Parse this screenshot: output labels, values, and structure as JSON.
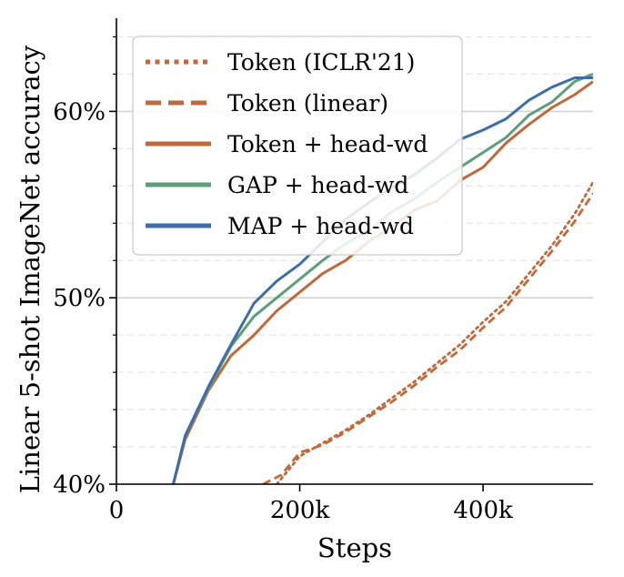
{
  "chart_data": {
    "type": "line",
    "xlabel": "Steps",
    "ylabel": "Linear 5-shot ImageNet accuracy",
    "xlim": [
      0,
      520000
    ],
    "ylim": [
      40,
      65
    ],
    "x_ticks": [
      {
        "value": 0,
        "label": "0"
      },
      {
        "value": 200000,
        "label": "200k"
      },
      {
        "value": 400000,
        "label": "400k"
      }
    ],
    "y_ticks": [
      {
        "value": 40,
        "label": "40%"
      },
      {
        "value": 50,
        "label": "50%"
      },
      {
        "value": 60,
        "label": "60%"
      }
    ],
    "y_minor_gridlines": [
      42,
      44,
      46,
      48,
      52,
      54,
      56,
      58,
      62,
      64
    ],
    "grid": true,
    "legend_position": "top-left",
    "series": [
      {
        "name": "Token (ICLR'21)",
        "color": "#c0693a",
        "style": "dotted",
        "points": [
          [
            175000,
            40
          ],
          [
            200000,
            41.5
          ],
          [
            225000,
            42.2
          ],
          [
            250000,
            42.9
          ],
          [
            275000,
            43.7
          ],
          [
            300000,
            44.6
          ],
          [
            325000,
            45.5
          ],
          [
            350000,
            46.5
          ],
          [
            375000,
            47.5
          ],
          [
            400000,
            48.7
          ],
          [
            425000,
            49.8
          ],
          [
            450000,
            51.3
          ],
          [
            475000,
            52.8
          ],
          [
            500000,
            54.5
          ],
          [
            520000,
            56.2
          ]
        ]
      },
      {
        "name": "Token (linear)",
        "color": "#c0693a",
        "style": "dashed",
        "points": [
          [
            160000,
            40
          ],
          [
            180000,
            40.5
          ],
          [
            200000,
            41.7
          ],
          [
            225000,
            42.1
          ],
          [
            250000,
            42.8
          ],
          [
            275000,
            43.6
          ],
          [
            300000,
            44.4
          ],
          [
            325000,
            45.3
          ],
          [
            350000,
            46.3
          ],
          [
            375000,
            47.2
          ],
          [
            400000,
            48.4
          ],
          [
            425000,
            49.5
          ],
          [
            450000,
            51.0
          ],
          [
            475000,
            52.5
          ],
          [
            500000,
            54.1
          ],
          [
            520000,
            55.6
          ]
        ]
      },
      {
        "name": "Token + head-wd",
        "color": "#c0693a",
        "style": "solid",
        "points": [
          [
            62000,
            40
          ],
          [
            75000,
            42.4
          ],
          [
            100000,
            45
          ],
          [
            125000,
            46.9
          ],
          [
            150000,
            48
          ],
          [
            175000,
            49.3
          ],
          [
            200000,
            50.3
          ],
          [
            225000,
            51.3
          ],
          [
            250000,
            52
          ],
          [
            275000,
            53
          ],
          [
            300000,
            53.8
          ],
          [
            325000,
            54.7
          ],
          [
            350000,
            55.2
          ],
          [
            375000,
            56.3
          ],
          [
            400000,
            57
          ],
          [
            425000,
            58.3
          ],
          [
            450000,
            59.3
          ],
          [
            475000,
            60.2
          ],
          [
            500000,
            60.9
          ],
          [
            520000,
            61.6
          ]
        ]
      },
      {
        "name": "GAP + head-wd",
        "color": "#5e9e7a",
        "style": "solid",
        "points": [
          [
            62000,
            40
          ],
          [
            75000,
            42.6
          ],
          [
            100000,
            45.1
          ],
          [
            125000,
            47.4
          ],
          [
            150000,
            49
          ],
          [
            175000,
            50
          ],
          [
            200000,
            51
          ],
          [
            225000,
            52
          ],
          [
            250000,
            52.9
          ],
          [
            275000,
            53.6
          ],
          [
            300000,
            54.6
          ],
          [
            325000,
            55.3
          ],
          [
            350000,
            56.2
          ],
          [
            375000,
            57
          ],
          [
            400000,
            57.8
          ],
          [
            425000,
            58.6
          ],
          [
            450000,
            59.8
          ],
          [
            475000,
            60.5
          ],
          [
            500000,
            61.6
          ],
          [
            520000,
            62
          ]
        ]
      },
      {
        "name": "MAP + head-wd",
        "color": "#3e6ea8",
        "style": "solid",
        "points": [
          [
            62000,
            40
          ],
          [
            75000,
            42.6
          ],
          [
            100000,
            45.2
          ],
          [
            125000,
            47.5
          ],
          [
            150000,
            49.7
          ],
          [
            175000,
            50.9
          ],
          [
            200000,
            51.8
          ],
          [
            225000,
            53
          ],
          [
            250000,
            54.2
          ],
          [
            275000,
            55.1
          ],
          [
            300000,
            55.9
          ],
          [
            325000,
            56.6
          ],
          [
            350000,
            57.5
          ],
          [
            375000,
            58.5
          ],
          [
            400000,
            59
          ],
          [
            425000,
            59.6
          ],
          [
            450000,
            60.6
          ],
          [
            475000,
            61.3
          ],
          [
            500000,
            61.8
          ],
          [
            520000,
            61.8
          ]
        ]
      }
    ]
  }
}
